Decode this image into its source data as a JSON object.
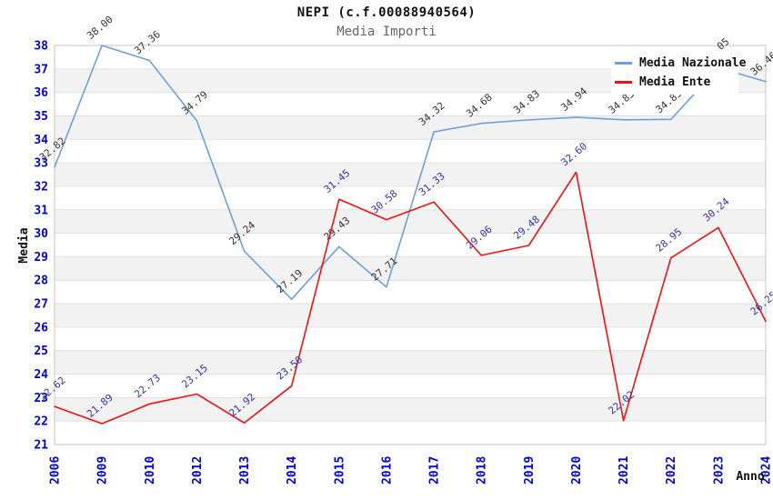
{
  "chart_data": {
    "type": "line",
    "title": "NEPI (c.f.00088940564)",
    "subtitle": "Media Importi",
    "xlabel": "Anno",
    "ylabel": "Media",
    "ylim": [
      21,
      38
    ],
    "grid": {
      "band_color": "#f2f2f2",
      "line_color": "#e0e0e0",
      "border_color": "#c6c6c6",
      "bands": "alternating horizontal"
    },
    "axis_tick_color": "#0000cc",
    "legend_position": "top-right",
    "categories": [
      "2006",
      "2009",
      "2010",
      "2012",
      "2013",
      "2014",
      "2015",
      "2016",
      "2017",
      "2018",
      "2019",
      "2020",
      "2021",
      "2022",
      "2023",
      "2024"
    ],
    "series": [
      {
        "name": "Media Nazionale",
        "color": "#6ea0d7",
        "label_color": "#333333",
        "values": [
          32.82,
          38.0,
          37.36,
          34.79,
          29.24,
          27.19,
          29.43,
          27.71,
          34.32,
          34.68,
          34.83,
          34.94,
          34.83,
          34.85,
          37.05,
          36.46
        ]
      },
      {
        "name": "Media Ente",
        "color": "#ee1111",
        "label_color": "#3333aa",
        "values": [
          22.62,
          21.89,
          22.73,
          23.15,
          21.92,
          23.5,
          31.45,
          30.58,
          31.33,
          29.06,
          29.48,
          32.6,
          22.02,
          28.95,
          30.24,
          26.25
        ]
      }
    ]
  }
}
